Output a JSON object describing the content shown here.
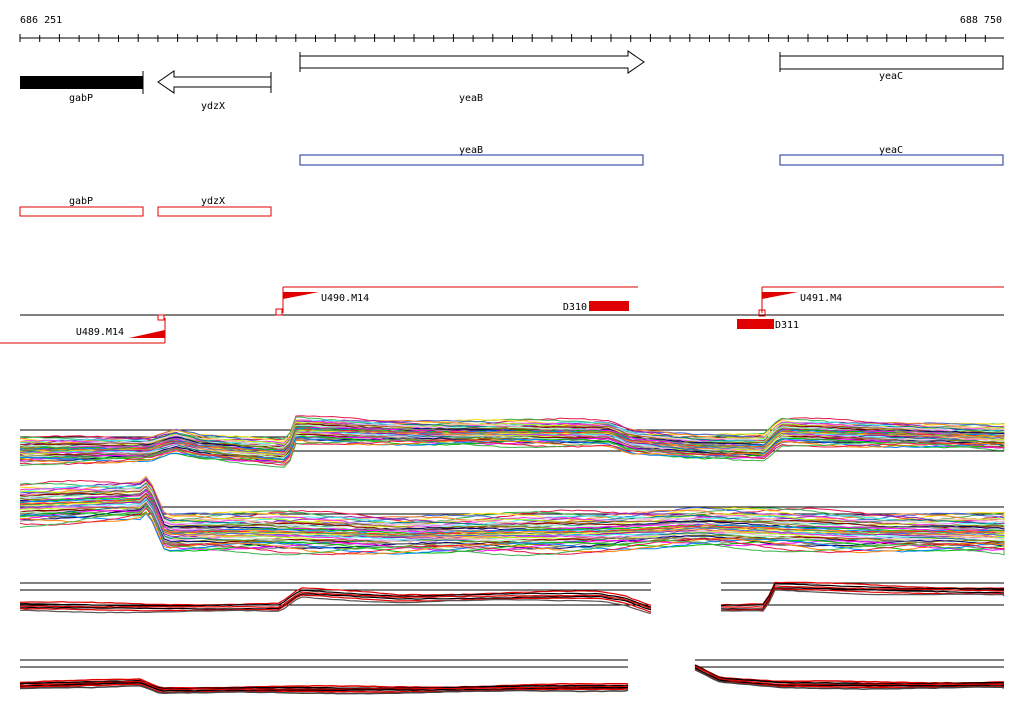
{
  "coords": {
    "start": "686 251",
    "end": "688 750"
  },
  "genes": [
    {
      "name": "gabP",
      "strand": "+",
      "style": "filled"
    },
    {
      "name": "ydzX",
      "strand": "-",
      "style": "open-arrow"
    },
    {
      "name": "yeaB",
      "strand": "+",
      "style": "open-arrow"
    },
    {
      "name": "yeaC",
      "strand": "+",
      "style": "open-box"
    }
  ],
  "gene_boxes_blue": [
    "yeaB",
    "yeaC"
  ],
  "gene_boxes_red": [
    "gabP",
    "ydzX"
  ],
  "features": {
    "transcripts": [
      "U490.M14",
      "U491.M4",
      "U489.M14"
    ],
    "deletions": [
      "D310",
      "D311"
    ]
  },
  "colors": {
    "axis": "#000000",
    "gene_fill": "#000000",
    "blue_box": "#1a2f9c",
    "red_box": "#e00000",
    "feature": "#e00000",
    "background": "#ffffff"
  },
  "tracks": {
    "expression_panels": 4,
    "palette": [
      "#e6194b",
      "#3cb44b",
      "#ffe119",
      "#4363d8",
      "#f58231",
      "#911eb4",
      "#46f0f0",
      "#f032e6",
      "#bcf60c",
      "#fabebe",
      "#008080",
      "#e6beff",
      "#9a6324",
      "#800000",
      "#aaffc3",
      "#808000",
      "#000075",
      "#808080",
      "#ff00ff",
      "#00c000",
      "#0080ff",
      "#ff8000"
    ]
  }
}
